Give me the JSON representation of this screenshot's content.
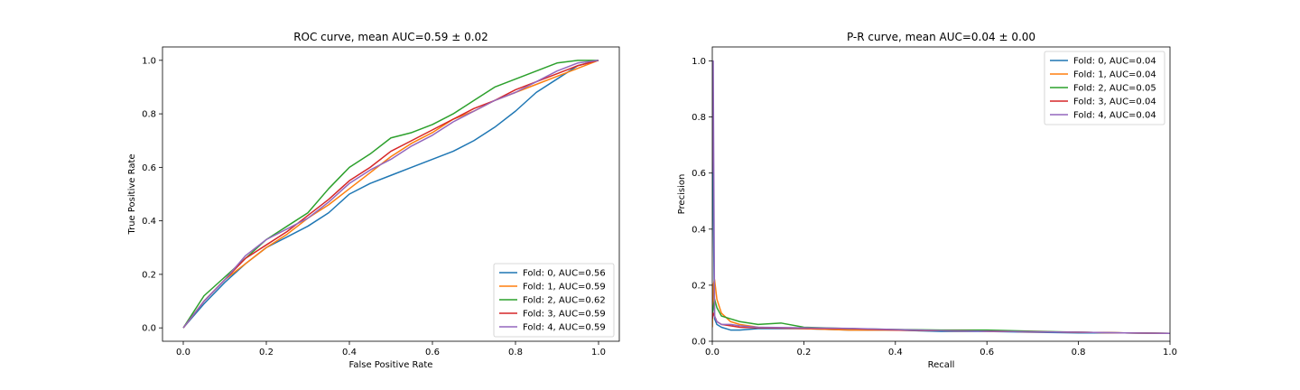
{
  "chart_data": [
    {
      "type": "line",
      "title": "ROC curve, mean AUC=0.59 ± 0.02",
      "xlabel": "False Positive Rate",
      "ylabel": "True Positive Rate",
      "xlim": [
        -0.05,
        1.05
      ],
      "ylim": [
        -0.05,
        1.05
      ],
      "xticks": [
        "0.0",
        "0.2",
        "0.4",
        "0.6",
        "0.8",
        "1.0"
      ],
      "yticks": [
        "0.0",
        "0.2",
        "0.4",
        "0.6",
        "0.8",
        "1.0"
      ],
      "grid": false,
      "legend_position": "lower right",
      "series": [
        {
          "name": "Fold: 0, AUC=0.56",
          "color": "#1f77b4",
          "x": [
            0,
            0.05,
            0.1,
            0.15,
            0.2,
            0.25,
            0.3,
            0.35,
            0.4,
            0.45,
            0.5,
            0.55,
            0.6,
            0.65,
            0.7,
            0.75,
            0.8,
            0.85,
            0.9,
            0.95,
            1.0
          ],
          "y": [
            0,
            0.09,
            0.17,
            0.24,
            0.3,
            0.34,
            0.38,
            0.43,
            0.5,
            0.54,
            0.57,
            0.6,
            0.63,
            0.66,
            0.7,
            0.75,
            0.81,
            0.88,
            0.93,
            0.98,
            1.0
          ]
        },
        {
          "name": "Fold: 1, AUC=0.59",
          "color": "#ff7f0e",
          "x": [
            0,
            0.05,
            0.1,
            0.15,
            0.2,
            0.25,
            0.3,
            0.35,
            0.4,
            0.45,
            0.5,
            0.55,
            0.6,
            0.65,
            0.7,
            0.75,
            0.8,
            0.85,
            0.9,
            0.95,
            1.0
          ],
          "y": [
            0,
            0.1,
            0.18,
            0.24,
            0.3,
            0.35,
            0.41,
            0.46,
            0.52,
            0.58,
            0.64,
            0.69,
            0.73,
            0.78,
            0.81,
            0.85,
            0.88,
            0.91,
            0.94,
            0.97,
            1.0
          ]
        },
        {
          "name": "Fold: 2, AUC=0.62",
          "color": "#2ca02c",
          "x": [
            0,
            0.05,
            0.1,
            0.15,
            0.2,
            0.25,
            0.3,
            0.35,
            0.4,
            0.45,
            0.5,
            0.55,
            0.6,
            0.65,
            0.7,
            0.75,
            0.8,
            0.85,
            0.9,
            0.95,
            1.0
          ],
          "y": [
            0,
            0.12,
            0.19,
            0.26,
            0.33,
            0.38,
            0.43,
            0.52,
            0.6,
            0.65,
            0.71,
            0.73,
            0.76,
            0.8,
            0.85,
            0.9,
            0.93,
            0.96,
            0.99,
            1.0,
            1.0
          ]
        },
        {
          "name": "Fold: 3, AUC=0.59",
          "color": "#d62728",
          "x": [
            0,
            0.05,
            0.1,
            0.15,
            0.2,
            0.25,
            0.3,
            0.35,
            0.4,
            0.45,
            0.5,
            0.55,
            0.6,
            0.65,
            0.7,
            0.75,
            0.8,
            0.85,
            0.9,
            0.95,
            1.0
          ],
          "y": [
            0,
            0.1,
            0.18,
            0.26,
            0.31,
            0.36,
            0.42,
            0.48,
            0.55,
            0.6,
            0.66,
            0.7,
            0.74,
            0.78,
            0.82,
            0.85,
            0.89,
            0.92,
            0.95,
            0.98,
            1.0
          ]
        },
        {
          "name": "Fold: 4, AUC=0.59",
          "color": "#9467bd",
          "x": [
            0,
            0.05,
            0.1,
            0.15,
            0.2,
            0.25,
            0.3,
            0.35,
            0.4,
            0.45,
            0.5,
            0.55,
            0.6,
            0.65,
            0.7,
            0.75,
            0.8,
            0.85,
            0.9,
            0.95,
            1.0
          ],
          "y": [
            0,
            0.1,
            0.18,
            0.27,
            0.33,
            0.37,
            0.41,
            0.47,
            0.54,
            0.59,
            0.63,
            0.68,
            0.72,
            0.77,
            0.81,
            0.85,
            0.88,
            0.92,
            0.96,
            0.99,
            1.0
          ]
        }
      ]
    },
    {
      "type": "line",
      "title": "P-R curve, mean AUC=0.04 ± 0.00",
      "xlabel": "Recall",
      "ylabel": "Precision",
      "xlim": [
        0.0,
        1.0
      ],
      "ylim": [
        0.0,
        1.05
      ],
      "xticks": [
        "0.0",
        "0.2",
        "0.4",
        "0.6",
        "0.8",
        "1.0"
      ],
      "yticks": [
        "0.0",
        "0.2",
        "0.4",
        "0.6",
        "0.8",
        "1.0"
      ],
      "grid": false,
      "legend_position": "upper right",
      "series": [
        {
          "name": "Fold: 0, AUC=0.04",
          "color": "#1f77b4",
          "x": [
            0,
            0.002,
            0.005,
            0.01,
            0.02,
            0.04,
            0.06,
            0.1,
            0.2,
            0.3,
            0.4,
            0.5,
            0.6,
            0.7,
            0.8,
            0.9,
            1.0
          ],
          "y": [
            1.0,
            0.5,
            0.08,
            0.06,
            0.05,
            0.04,
            0.04,
            0.045,
            0.045,
            0.04,
            0.04,
            0.035,
            0.035,
            0.032,
            0.03,
            0.03,
            0.028
          ]
        },
        {
          "name": "Fold: 1, AUC=0.04",
          "color": "#ff7f0e",
          "x": [
            0,
            0.002,
            0.005,
            0.01,
            0.02,
            0.04,
            0.06,
            0.1,
            0.2,
            0.3,
            0.4,
            0.5,
            0.6,
            0.7,
            0.8,
            0.9,
            1.0
          ],
          "y": [
            0.05,
            0.2,
            0.22,
            0.15,
            0.1,
            0.07,
            0.06,
            0.05,
            0.045,
            0.04,
            0.04,
            0.038,
            0.036,
            0.034,
            0.032,
            0.03,
            0.028
          ]
        },
        {
          "name": "Fold: 2, AUC=0.05",
          "color": "#2ca02c",
          "x": [
            0,
            0.002,
            0.005,
            0.01,
            0.02,
            0.04,
            0.06,
            0.1,
            0.15,
            0.2,
            0.3,
            0.4,
            0.5,
            0.6,
            0.7,
            0.8,
            0.9,
            1.0
          ],
          "y": [
            0.1,
            0.12,
            0.15,
            0.12,
            0.09,
            0.08,
            0.07,
            0.06,
            0.065,
            0.05,
            0.045,
            0.042,
            0.04,
            0.04,
            0.036,
            0.032,
            0.03,
            0.028
          ]
        },
        {
          "name": "Fold: 3, AUC=0.04",
          "color": "#d62728",
          "x": [
            0,
            0.002,
            0.005,
            0.01,
            0.02,
            0.04,
            0.06,
            0.1,
            0.2,
            0.3,
            0.4,
            0.5,
            0.6,
            0.7,
            0.8,
            0.9,
            1.0
          ],
          "y": [
            0.08,
            0.1,
            0.09,
            0.07,
            0.06,
            0.055,
            0.05,
            0.048,
            0.046,
            0.045,
            0.04,
            0.038,
            0.036,
            0.034,
            0.032,
            0.03,
            0.028
          ]
        },
        {
          "name": "Fold: 4, AUC=0.04",
          "color": "#9467bd",
          "x": [
            0,
            0.002,
            0.005,
            0.01,
            0.02,
            0.04,
            0.06,
            0.1,
            0.2,
            0.3,
            0.4,
            0.5,
            0.6,
            0.7,
            0.8,
            0.9,
            1.0
          ],
          "y": [
            0.6,
            1.0,
            0.09,
            0.07,
            0.06,
            0.06,
            0.055,
            0.05,
            0.048,
            0.046,
            0.042,
            0.038,
            0.036,
            0.034,
            0.032,
            0.03,
            0.028
          ]
        }
      ]
    }
  ]
}
